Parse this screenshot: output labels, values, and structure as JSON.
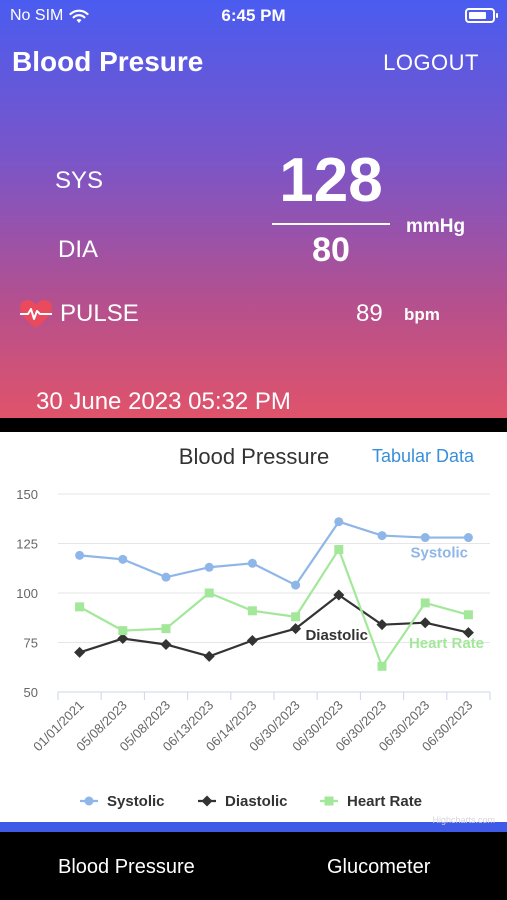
{
  "status_bar": {
    "carrier": "No SIM",
    "time": "6:45 PM",
    "wifi_icon": "wifi-icon",
    "battery_icon": "battery-icon"
  },
  "header": {
    "title": "Blood Presure",
    "logout_label": "LOGOUT",
    "sys_label": "SYS",
    "dia_label": "DIA",
    "pulse_label": "PULSE",
    "pulse_icon": "heart-pulse-icon",
    "systolic": "128",
    "diastolic": "80",
    "pressure_unit": "mmHg",
    "pulse": "89",
    "pulse_unit": "bpm",
    "timestamp": "30 June 2023 05:32 PM",
    "gradient_colors": [
      "#4a5cf0",
      "#7a55c8",
      "#b4508f",
      "#e0536a"
    ]
  },
  "chart_card": {
    "tabular_link": "Tabular Data",
    "watermark": "Highcharts.com"
  },
  "chart_data": {
    "type": "line",
    "title": "Blood Pressure",
    "categories": [
      "01/01/2021",
      "05/08/2023",
      "05/08/2023",
      "06/13/2023",
      "06/14/2023",
      "06/30/2023",
      "06/30/2023",
      "06/30/2023",
      "06/30/2023",
      "06/30/2023"
    ],
    "ylim": [
      50,
      150
    ],
    "yticks": [
      50,
      75,
      100,
      125,
      150
    ],
    "grid": true,
    "legend": "bottom-center",
    "series": [
      {
        "name": "Systolic",
        "color": "#8fb6e8",
        "marker": "circle",
        "values": [
          119,
          117,
          108,
          113,
          115,
          104,
          136,
          129,
          128,
          128
        ]
      },
      {
        "name": "Diastolic",
        "color": "#333333",
        "marker": "diamond",
        "values": [
          70,
          77,
          74,
          68,
          76,
          82,
          99,
          84,
          85,
          80
        ]
      },
      {
        "name": "Heart Rate",
        "color": "#a3e89a",
        "marker": "square",
        "values": [
          93,
          81,
          82,
          100,
          91,
          88,
          122,
          63,
          95,
          89
        ]
      }
    ]
  },
  "tab_bar": {
    "blood_pressure": "Blood Pressure",
    "glucometer": "Glucometer"
  }
}
